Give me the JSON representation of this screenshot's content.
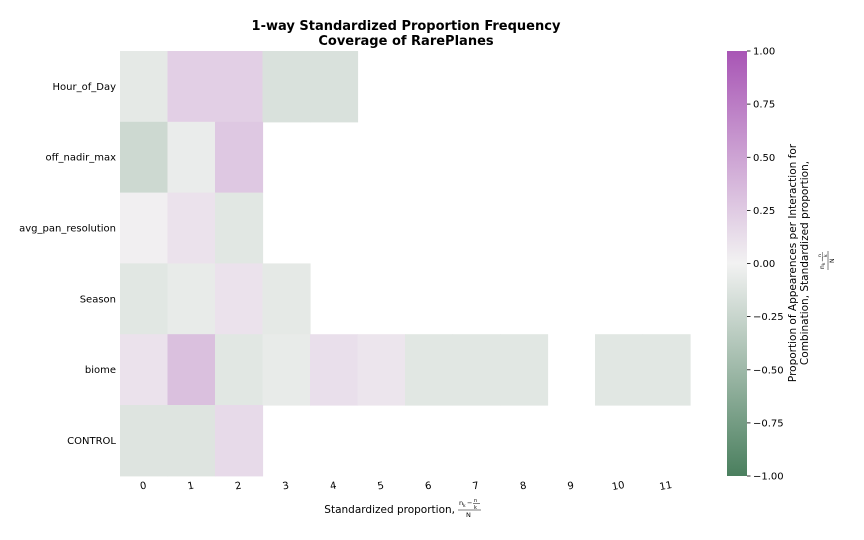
{
  "chart_data": {
    "type": "heatmap",
    "title": "1-way Standardized Proportion Frequency",
    "subtitle": "Coverage of RarePlanes",
    "xlabel": "Standardized proportion,",
    "ylabel": "",
    "x_categories": [
      "0",
      "1",
      "2",
      "3",
      "4",
      "5",
      "6",
      "7",
      "8",
      "9",
      "10",
      "11"
    ],
    "y_categories": [
      "Hour_of_Day",
      "off_nadir_max",
      "avg_pan_resolution",
      "Season",
      "biome",
      "CONTROL"
    ],
    "values": [
      [
        -0.08,
        0.22,
        0.22,
        -0.15,
        -0.15,
        null,
        null,
        null,
        null,
        null,
        null,
        null
      ],
      [
        -0.22,
        -0.05,
        0.27,
        null,
        null,
        null,
        null,
        null,
        null,
        null,
        null,
        null
      ],
      [
        0.02,
        0.1,
        -0.1,
        null,
        null,
        null,
        null,
        null,
        null,
        null,
        null,
        null
      ],
      [
        -0.1,
        -0.06,
        0.1,
        -0.08,
        null,
        null,
        null,
        null,
        null,
        null,
        null,
        null
      ],
      [
        0.1,
        0.32,
        -0.1,
        -0.06,
        0.12,
        0.08,
        -0.1,
        -0.1,
        -0.1,
        null,
        -0.1,
        -0.1
      ],
      [
        -0.12,
        -0.12,
        0.15,
        null,
        null,
        null,
        null,
        null,
        null,
        null,
        null,
        null
      ]
    ],
    "colorbar": {
      "label_line1": "Proportion of Appearences per Interaction for",
      "label_line2": "Combination, Standardized proportion,",
      "range": [
        -1.0,
        1.0
      ],
      "ticks": [
        "1.00",
        "0.75",
        "0.50",
        "0.25",
        "0.00",
        "−0.25",
        "−0.50",
        "−0.75",
        "−1.00"
      ],
      "color_low": "#4a7f5e",
      "color_mid": "#f2f2f2",
      "color_high": "#a855b5"
    },
    "grid": false
  }
}
